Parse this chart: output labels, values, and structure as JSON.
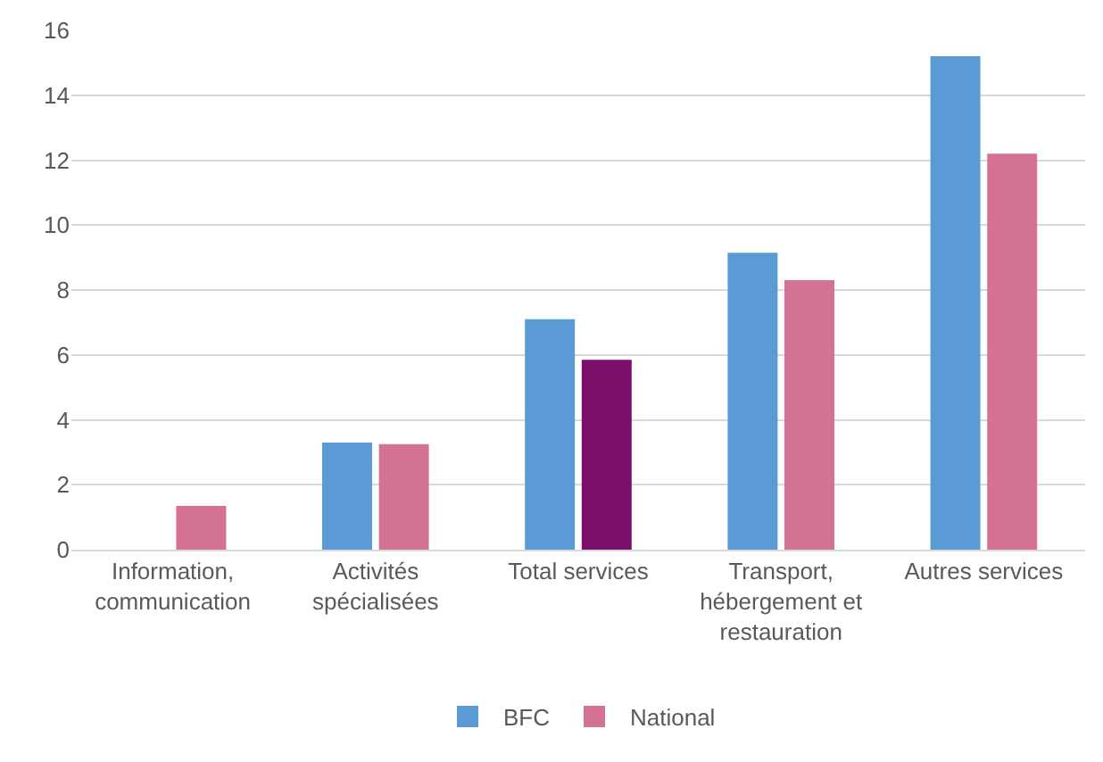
{
  "chart_data": {
    "type": "bar",
    "categories": [
      "Information, communication",
      "Activités spécialisées",
      "Total services",
      "Transport, hébergement et restauration",
      "Autres services"
    ],
    "series": [
      {
        "name": "BFC",
        "color": "#5b9bd5",
        "values": [
          null,
          3.3,
          7.1,
          9.15,
          15.2
        ]
      },
      {
        "name": "National",
        "color": "#d37295",
        "colors": [
          "#d37295",
          "#d37295",
          "#7b0f6b",
          "#d37295",
          "#d37295"
        ],
        "values": [
          1.35,
          3.25,
          5.85,
          8.3,
          12.2
        ]
      }
    ],
    "ylim": [
      0,
      16
    ],
    "yticks": [
      0,
      2,
      4,
      6,
      8,
      10,
      12,
      14,
      16
    ],
    "grid": "y",
    "legend": "bottom"
  }
}
